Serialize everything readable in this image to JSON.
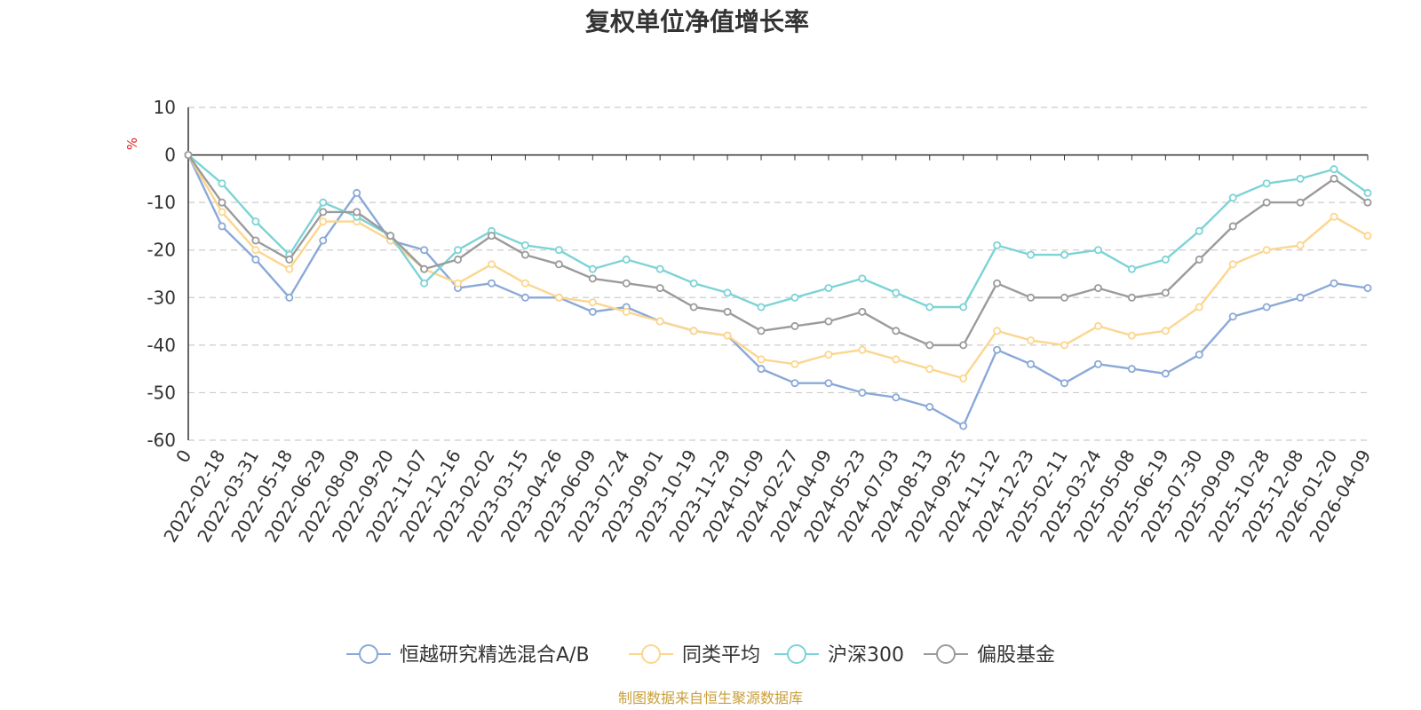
{
  "chart_data": {
    "type": "line",
    "title": "复权单位净值增长率",
    "ylabel": "%",
    "ylim": [
      -60,
      10
    ],
    "yticks": [
      "10",
      "0",
      "-10",
      "-20",
      "-30",
      "-40",
      "-50",
      "-60"
    ],
    "grid": true,
    "legend_position": "bottom",
    "source_note": "制图数据来自恒生聚源数据库",
    "categories": [
      "0",
      "2022-02-18",
      "2022-03-31",
      "2022-05-18",
      "2022-06-29",
      "2022-08-09",
      "2022-09-20",
      "2022-11-07",
      "2022-12-16",
      "2023-02-02",
      "2023-03-15",
      "2023-04-26",
      "2023-06-09",
      "2023-07-24",
      "2023-09-01",
      "2023-10-19",
      "2023-11-29",
      "2024-01-09",
      "2024-02-27",
      "2024-04-09",
      "2024-05-23",
      "2024-07-03",
      "2024-08-13",
      "2024-09-25",
      "2024-11-12",
      "2024-12-23",
      "2025-02-11",
      "2025-03-24",
      "2025-05-08",
      "2025-06-19",
      "2025-07-30",
      "2025-09-09",
      "2025-10-28",
      "2025-12-08",
      "2026-01-20",
      "2026-04-09"
    ],
    "series": [
      {
        "name": "恒越研究精选混合A/B",
        "color": "#8aa9d8",
        "values": [
          0,
          -15,
          -22,
          -30,
          -18,
          -8,
          -18,
          -20,
          -28,
          -27,
          -30,
          -30,
          -33,
          -32,
          -35,
          -37,
          -38,
          -45,
          -48,
          -48,
          -50,
          -51,
          -53,
          -57,
          -41,
          -44,
          -48,
          -44,
          -45,
          -46,
          -42,
          -34,
          -32,
          -30,
          -27,
          -28
        ]
      },
      {
        "name": "同类平均",
        "color": "#fcd68e",
        "values": [
          0,
          -12,
          -20,
          -24,
          -14,
          -14,
          -18,
          -24,
          -27,
          -23,
          -27,
          -30,
          -31,
          -33,
          -35,
          -37,
          -38,
          -43,
          -44,
          -42,
          -41,
          -43,
          -45,
          -47,
          -37,
          -39,
          -40,
          -36,
          -38,
          -37,
          -32,
          -23,
          -20,
          -19,
          -13,
          -17
        ]
      },
      {
        "name": "沪深300",
        "color": "#7dd3d6",
        "values": [
          0,
          -6,
          -14,
          -21,
          -10,
          -13,
          -17,
          -27,
          -20,
          -16,
          -19,
          -20,
          -24,
          -22,
          -24,
          -27,
          -29,
          -32,
          -30,
          -28,
          -26,
          -29,
          -32,
          -32,
          -19,
          -21,
          -21,
          -20,
          -24,
          -22,
          -16,
          -9,
          -6,
          -5,
          -3,
          -8
        ]
      },
      {
        "name": "偏股基金",
        "color": "#9b9b9b",
        "values": [
          0,
          -10,
          -18,
          -22,
          -12,
          -12,
          -17,
          -24,
          -22,
          -17,
          -21,
          -23,
          -26,
          -27,
          -28,
          -32,
          -33,
          -37,
          -36,
          -35,
          -33,
          -37,
          -40,
          -40,
          -27,
          -30,
          -30,
          -28,
          -30,
          -29,
          -22,
          -15,
          -10,
          -10,
          -5,
          -10
        ]
      }
    ]
  }
}
